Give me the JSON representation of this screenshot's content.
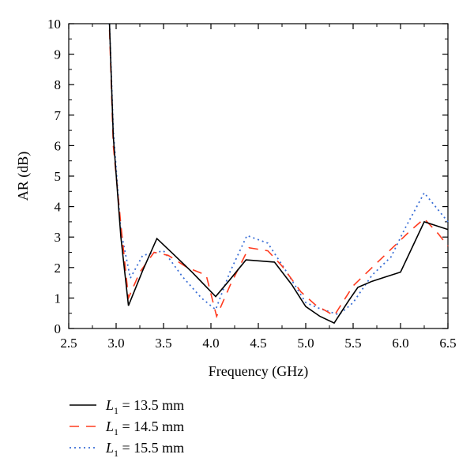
{
  "chart_data": {
    "type": "line",
    "xlabel": "Frequency (GHz)",
    "ylabel": "AR (dB)",
    "xlim": [
      2.5,
      6.5
    ],
    "ylim": [
      0,
      10
    ],
    "xticks": [
      "2.5",
      "3.0",
      "3.5",
      "4.0",
      "4.5",
      "5.0",
      "5.5",
      "6.0",
      "6.5"
    ],
    "yticks": [
      "0",
      "1",
      "2",
      "3",
      "4",
      "5",
      "6",
      "7",
      "8",
      "9",
      "10"
    ],
    "grid": false,
    "legend": "bottom-left",
    "series": [
      {
        "name": "L1 = 13.5 mm",
        "label_main": "L",
        "label_sub": "1",
        "label_rest": " = 13.5 mm",
        "color": "#000000",
        "style": "solid",
        "x": [
          2.93,
          2.97,
          3.05,
          3.13,
          3.28,
          3.43,
          3.6,
          3.8,
          4.05,
          4.2,
          4.37,
          4.67,
          4.85,
          5.0,
          5.15,
          5.3,
          5.45,
          5.55,
          5.7,
          5.85,
          6.0,
          6.25,
          6.4,
          6.5
        ],
        "y": [
          10.0,
          6.3,
          3.0,
          0.75,
          1.9,
          2.95,
          2.45,
          1.85,
          1.05,
          1.6,
          2.25,
          2.18,
          1.45,
          0.72,
          0.4,
          0.18,
          0.9,
          1.35,
          1.55,
          1.7,
          1.85,
          3.5,
          3.35,
          3.25
        ]
      },
      {
        "name": "L1 = 14.5 mm",
        "label_main": "L",
        "label_sub": "1",
        "label_rest": " = 14.5 mm",
        "color": "#ff3b1f",
        "style": "dashed",
        "x": [
          2.93,
          2.97,
          3.05,
          3.13,
          3.25,
          3.4,
          3.55,
          3.75,
          3.95,
          4.06,
          4.2,
          4.4,
          4.6,
          4.75,
          4.95,
          5.1,
          5.3,
          5.5,
          5.7,
          5.9,
          6.1,
          6.25,
          6.4,
          6.5
        ],
        "y": [
          9.8,
          6.0,
          3.4,
          1.0,
          1.85,
          2.5,
          2.4,
          2.0,
          1.75,
          0.4,
          1.4,
          2.65,
          2.55,
          2.05,
          1.2,
          0.78,
          0.42,
          1.4,
          2.0,
          2.6,
          3.2,
          3.6,
          3.1,
          2.7
        ]
      },
      {
        "name": "L1 = 15.5 mm",
        "label_main": "L",
        "label_sub": "1",
        "label_rest": " = 15.5 mm",
        "color": "#3b6fd6",
        "style": "dotted",
        "x": [
          2.93,
          2.97,
          3.05,
          3.15,
          3.28,
          3.5,
          3.7,
          3.9,
          4.05,
          4.2,
          4.38,
          4.6,
          4.8,
          5.0,
          5.15,
          5.35,
          5.5,
          5.7,
          5.9,
          6.05,
          6.25,
          6.5
        ],
        "y": [
          10.0,
          6.5,
          3.2,
          1.65,
          2.4,
          2.55,
          1.7,
          1.0,
          0.62,
          1.85,
          3.05,
          2.8,
          1.85,
          0.85,
          0.65,
          0.45,
          0.85,
          1.75,
          2.35,
          3.3,
          4.45,
          3.5
        ]
      }
    ]
  }
}
